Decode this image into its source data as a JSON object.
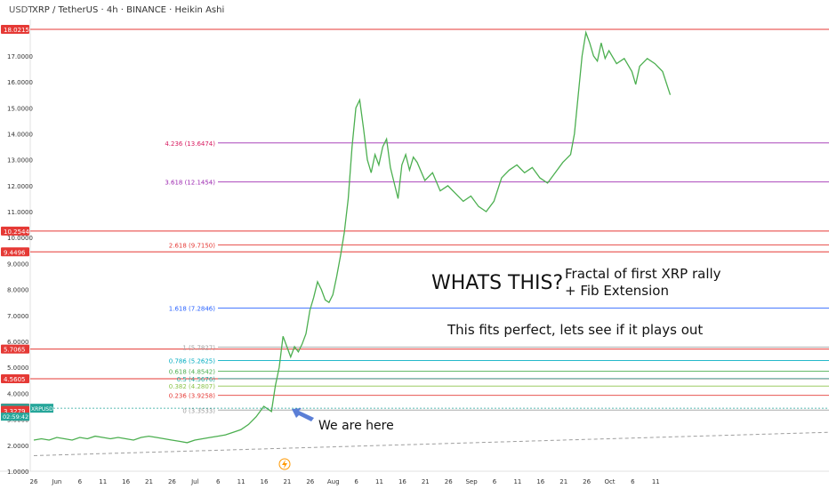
{
  "header": {
    "ticker_label": "USDT",
    "title": "XRP / TetherUS · 4h · BINANCE · Heikin Ashi"
  },
  "chart_data": {
    "type": "line",
    "title": "XRP / TetherUS · 4h · BINANCE · Heikin Ashi",
    "xlabel": "",
    "ylabel": "",
    "ylim": [
      1.0,
      18.4
    ],
    "y_ticks": [
      "1.0000",
      "2.0000",
      "3.0000",
      "4.0000",
      "5.0000",
      "6.0000",
      "7.0000",
      "8.0000",
      "9.0000",
      "10.0000",
      "11.0000",
      "12.0000",
      "13.0000",
      "14.0000",
      "15.0000",
      "16.0000",
      "17.0000"
    ],
    "x_ticks": [
      "26",
      "Jun",
      "6",
      "11",
      "16",
      "21",
      "26",
      "Jul",
      "6",
      "11",
      "16",
      "21",
      "26",
      "Aug",
      "6",
      "11",
      "16",
      "21",
      "26",
      "Sep",
      "6",
      "11",
      "16",
      "21",
      "26",
      "Oct",
      "6",
      "11"
    ],
    "series": [
      {
        "values": [
          [
            0,
            2.2
          ],
          [
            4,
            2.25
          ],
          [
            8,
            2.2
          ],
          [
            12,
            2.3
          ],
          [
            16,
            2.25
          ],
          [
            20,
            2.2
          ],
          [
            24,
            2.3
          ],
          [
            28,
            2.25
          ],
          [
            32,
            2.35
          ],
          [
            36,
            2.3
          ],
          [
            40,
            2.25
          ],
          [
            44,
            2.3
          ],
          [
            48,
            2.25
          ],
          [
            52,
            2.2
          ],
          [
            56,
            2.3
          ],
          [
            60,
            2.35
          ],
          [
            64,
            2.3
          ],
          [
            68,
            2.25
          ],
          [
            72,
            2.2
          ],
          [
            76,
            2.15
          ],
          [
            80,
            2.1
          ],
          [
            84,
            2.2
          ],
          [
            88,
            2.25
          ],
          [
            92,
            2.3
          ],
          [
            96,
            2.35
          ],
          [
            100,
            2.4
          ],
          [
            104,
            2.5
          ],
          [
            108,
            2.6
          ],
          [
            112,
            2.8
          ],
          [
            116,
            3.1
          ],
          [
            120,
            3.5
          ],
          [
            124,
            3.3
          ],
          [
            126,
            4.3
          ],
          [
            128,
            5.0
          ],
          [
            130,
            6.2
          ],
          [
            132,
            5.8
          ],
          [
            134,
            5.4
          ],
          [
            136,
            5.8
          ],
          [
            138,
            5.6
          ],
          [
            140,
            5.9
          ],
          [
            142,
            6.3
          ],
          [
            144,
            7.2
          ],
          [
            146,
            7.7
          ],
          [
            148,
            8.3
          ],
          [
            150,
            8.0
          ],
          [
            152,
            7.6
          ],
          [
            154,
            7.5
          ],
          [
            156,
            7.8
          ],
          [
            158,
            8.5
          ],
          [
            160,
            9.3
          ],
          [
            162,
            10.2
          ],
          [
            164,
            11.5
          ],
          [
            166,
            13.5
          ],
          [
            168,
            15.0
          ],
          [
            170,
            15.3
          ],
          [
            172,
            14.2
          ],
          [
            174,
            13.0
          ],
          [
            176,
            12.5
          ],
          [
            178,
            13.2
          ],
          [
            180,
            12.8
          ],
          [
            182,
            13.5
          ],
          [
            184,
            13.8
          ],
          [
            186,
            12.7
          ],
          [
            188,
            12.1
          ],
          [
            190,
            11.5
          ],
          [
            192,
            12.8
          ],
          [
            194,
            13.2
          ],
          [
            196,
            12.6
          ],
          [
            198,
            13.1
          ],
          [
            200,
            12.9
          ],
          [
            204,
            12.2
          ],
          [
            208,
            12.5
          ],
          [
            212,
            11.8
          ],
          [
            216,
            12.0
          ],
          [
            220,
            11.7
          ],
          [
            224,
            11.4
          ],
          [
            228,
            11.6
          ],
          [
            232,
            11.2
          ],
          [
            236,
            11.0
          ],
          [
            240,
            11.4
          ],
          [
            244,
            12.3
          ],
          [
            248,
            12.6
          ],
          [
            252,
            12.8
          ],
          [
            256,
            12.5
          ],
          [
            260,
            12.7
          ],
          [
            264,
            12.3
          ],
          [
            268,
            12.1
          ],
          [
            272,
            12.5
          ],
          [
            276,
            12.9
          ],
          [
            280,
            13.2
          ],
          [
            282,
            14.0
          ],
          [
            284,
            15.5
          ],
          [
            286,
            17.0
          ],
          [
            288,
            17.9
          ],
          [
            290,
            17.5
          ],
          [
            292,
            17.0
          ],
          [
            294,
            16.8
          ],
          [
            296,
            17.5
          ],
          [
            298,
            16.9
          ],
          [
            300,
            17.2
          ],
          [
            304,
            16.7
          ],
          [
            308,
            16.9
          ],
          [
            312,
            16.4
          ],
          [
            314,
            15.9
          ],
          [
            316,
            16.6
          ],
          [
            320,
            16.9
          ],
          [
            324,
            16.7
          ],
          [
            328,
            16.4
          ],
          [
            332,
            15.5
          ]
        ]
      }
    ],
    "fib_levels": [
      {
        "label": "4.236 (13.6474)",
        "value": 13.6474,
        "color": "#9c27b0",
        "text_color": "#d81b60"
      },
      {
        "label": "3.618 (12.1454)",
        "value": 12.1454,
        "color": "#9c27b0",
        "text_color": "#9c27b0"
      },
      {
        "label": "2.618 (9.7150)",
        "value": 9.715,
        "color": "#e53935",
        "text_color": "#e53935"
      },
      {
        "label": "1.618 (7.2846)",
        "value": 7.2846,
        "color": "#2962ff",
        "text_color": "#2962ff"
      },
      {
        "label": "1 (5.7827)",
        "value": 5.7827,
        "color": "#9e9e9e",
        "text_color": "#9e9e9e"
      },
      {
        "label": "0.786 (5.2625)",
        "value": 5.2625,
        "color": "#00acc1",
        "text_color": "#00acc1"
      },
      {
        "label": "0.618 (4.8542)",
        "value": 4.8542,
        "color": "#4caf50",
        "text_color": "#4caf50"
      },
      {
        "label": "0.5 (4.5676)",
        "value": 4.5676,
        "color": "#26a69a",
        "text_color": "#26a69a"
      },
      {
        "label": "0.382 (4.2807)",
        "value": 4.2807,
        "color": "#8bc34a",
        "text_color": "#8bc34a"
      },
      {
        "label": "0.236 (3.9258)",
        "value": 3.9258,
        "color": "#e53935",
        "text_color": "#e53935"
      },
      {
        "label": "0 (3.3533)",
        "value": 3.3533,
        "color": "#9e9e9e",
        "text_color": "#9e9e9e"
      }
    ],
    "horizontal_lines": [
      {
        "label": "18.0215",
        "value": 18.0215,
        "color": "#e53935"
      },
      {
        "label": "10.2544",
        "value": 10.2544,
        "color": "#e53935"
      },
      {
        "label": "9.4496",
        "value": 9.4496,
        "color": "#e53935"
      },
      {
        "label": "5.7065",
        "value": 5.7065,
        "color": "#e53935"
      },
      {
        "label": "4.5605",
        "value": 4.5605,
        "color": "#e53935"
      }
    ],
    "price_tags": [
      {
        "label": "18.0215",
        "value": 18.0215,
        "color": "#e53935"
      },
      {
        "label": "10.2544",
        "value": 10.2544,
        "color": "#e53935"
      },
      {
        "label": "9.4496",
        "value": 9.4496,
        "color": "#e53935"
      },
      {
        "label": "5.7065",
        "value": 5.7065,
        "color": "#e53935"
      },
      {
        "label": "4.5605",
        "value": 4.5605,
        "color": "#e53935"
      },
      {
        "label": "3.4345",
        "value": 3.4345,
        "color": "#e53935"
      },
      {
        "label": "3.4270",
        "value": 3.427,
        "color": "#26a69a"
      },
      {
        "label": "3.3464",
        "value": 3.3464,
        "color": "#e53935"
      },
      {
        "label": "3.3279",
        "value": 3.3279,
        "color": "#e53935"
      }
    ],
    "countdown": "02:59:42",
    "symbol_tag": "XRPUSDT",
    "annotations": [
      {
        "text": "WHATS THIS?",
        "size": 22
      },
      {
        "text": "Fractal of first XRP rally",
        "size": 15
      },
      {
        "text": "+ Fib Extension",
        "size": 15
      },
      {
        "text": "This fits perfect, lets see if it plays out",
        "size": 15
      },
      {
        "text": "We are here",
        "size": 14
      }
    ],
    "trendline": {
      "from": [
        0,
        1.6
      ],
      "to": [
        332,
        2.5
      ],
      "style": "dashed"
    },
    "grid": false,
    "colors": {
      "line": "#4caf50",
      "background": "#ffffff",
      "axis_text": "#333333"
    }
  }
}
